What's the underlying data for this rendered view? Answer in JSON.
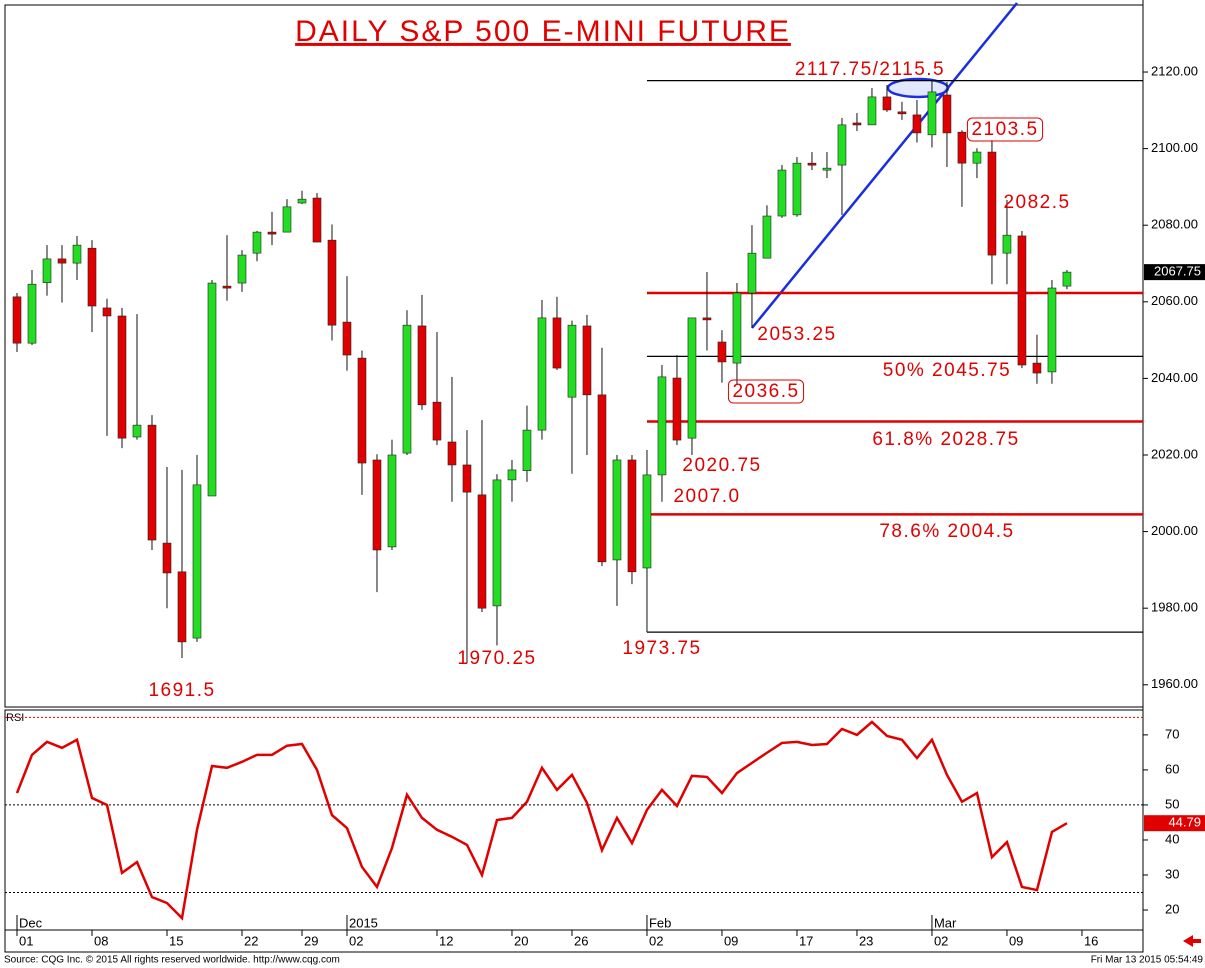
{
  "chart_data": [
    {
      "type": "candlestick",
      "title": "DAILY S&P 500 E-MINI FUTURE",
      "up_color": "#22dd22",
      "down_color": "#e00000",
      "xlim": [
        -0.8,
        75.07
      ],
      "ylim": [
        1954.2,
        2137.5
      ],
      "yticks": [
        {
          "value": 1960,
          "label": "1960.00"
        },
        {
          "value": 1980,
          "label": "1980.00"
        },
        {
          "value": 2000,
          "label": "2000.00"
        },
        {
          "value": 2020,
          "label": "2020.00"
        },
        {
          "value": 2040,
          "label": "2040.00"
        },
        {
          "value": 2060,
          "label": "2060.00"
        },
        {
          "value": 2080,
          "label": "2080.00"
        },
        {
          "value": 2100,
          "label": "2100.00"
        },
        {
          "value": 2120,
          "label": "2120.00"
        }
      ],
      "open": [
        2061.3,
        2049.2,
        2065,
        2071.2,
        2070.1,
        2074,
        2058.4,
        2056.3,
        2024.7,
        2027.8,
        1997,
        1989.5,
        1972.2,
        2009.3,
        2064.1,
        2064.9,
        2072.7,
        2078.2,
        2078.2,
        2085.8,
        2087.1,
        2076.1,
        2054.7,
        2045.3,
        2018.7,
        1996,
        2020.5,
        2053.7,
        2033.8,
        2023.4,
        2017.4,
        2009.6,
        1980.6,
        2013.5,
        2015.9,
        2026.5,
        2055.8,
        2035.1,
        2053.7,
        2035.7,
        1992.6,
        2018.7,
        1990.5,
        2014.8,
        2040.1,
        2024.4,
        2055.8,
        2049.5,
        2044,
        2062.3,
        2071.4,
        2082.4,
        2082.7,
        2096.2,
        2094.9,
        2095.7,
        2106.7,
        2106.2,
        2113.5,
        2109.6,
        2108.8,
        2103.6,
        2114,
        2104.3,
        2096.2,
        2099.1,
        2072.7,
        2077.2,
        2044,
        2041.7,
        2064.1
      ],
      "close": [
        2049.2,
        2064.6,
        2071.2,
        2070.1,
        2074.8,
        2058.9,
        2056.3,
        2024.4,
        2027.8,
        1997.8,
        1989.2,
        1971.2,
        2012.2,
        2064.9,
        2063.6,
        2072.2,
        2078.2,
        2078.0,
        2084.8,
        2086.8,
        2075.6,
        2053.9,
        2046.1,
        2017.9,
        1995.2,
        2020,
        2053.9,
        2033.1,
        2023.9,
        2017.4,
        2010.3,
        1980,
        2013.5,
        2016.1,
        2026.5,
        2055.8,
        2042.7,
        2053.9,
        2035.7,
        1992.1,
        2018.7,
        1989.5,
        2014.8,
        2040.4,
        2023.9,
        2055.8,
        2055.6,
        2044.3,
        2062.3,
        2072.7,
        2082.4,
        2094.4,
        2096.2,
        2096.0,
        2094.9,
        2106.2,
        2106.5,
        2113.5,
        2110.1,
        2109.4,
        2104.1,
        2114.8,
        2104.1,
        2096.2,
        2099.1,
        2072.2,
        2077.4,
        2043.5,
        2041.4,
        2063.6,
        2067.75
      ],
      "high": [
        2062.3,
        2068.3,
        2074.8,
        2074.8,
        2077.2,
        2076.1,
        2060.8,
        2058.4,
        2056.8,
        2030.4,
        2016.9,
        2016.1,
        2020,
        2065.7,
        2077.4,
        2073.5,
        2078.5,
        2083.5,
        2086.8,
        2089,
        2088.4,
        2080.2,
        2066.7,
        2047.3,
        2020.2,
        2024,
        2057.8,
        2061.8,
        2052.1,
        2040.4,
        2026.5,
        2029.1,
        2015,
        2018.7,
        2032.9,
        2060.5,
        2061.3,
        2055.1,
        2056.6,
        2048,
        2020,
        2020,
        2021.3,
        2043.5,
        2046.1,
        2055.8,
        2067.8,
        2052.6,
        2064.9,
        2080,
        2085.2,
        2095.7,
        2097.8,
        2099.1,
        2099.1,
        2108,
        2109.3,
        2115.8,
        2116.6,
        2112.2,
        2112.7,
        2117.9,
        2117.4,
        2104.8,
        2100.1,
        2102.2,
        2086.6,
        2078.5,
        2051.4,
        2065.7,
        2068.3
      ],
      "low": [
        2046.9,
        2048.7,
        2061.6,
        2059.8,
        2065.7,
        2052.1,
        2025,
        2021.8,
        2024,
        1995.2,
        1980,
        1967,
        1971.2,
        2009.3,
        2060.3,
        2062.6,
        2070.6,
        2074.8,
        2078.2,
        2085.5,
        2075.6,
        2049.9,
        2042,
        2009.6,
        1984.2,
        1995.2,
        2020,
        2031.8,
        2022.6,
        2007.8,
        1965.6,
        1979,
        1970.3,
        2007.8,
        2013,
        2024,
        2042.2,
        2015.1,
        2020,
        1991,
        1980.6,
        1986.3,
        1973.75,
        2007.8,
        2022.6,
        2020,
        2047.3,
        2038.9,
        2038.6,
        2053.2,
        2071.7,
        2081.9,
        2082.2,
        2094.4,
        2092.3,
        2082.7,
        2104.6,
        2106.2,
        2109.6,
        2107.5,
        2101.6,
        2100.3,
        2095.2,
        2084.8,
        2092.3,
        2064.6,
        2064.6,
        2042.7,
        2038.6,
        2038.6,
        2063.3
      ],
      "levels": [
        {
          "value": 2117.75,
          "color": "#000000",
          "from": 42
        },
        {
          "value": 2062.3,
          "color": "#e00000",
          "from": 42
        },
        {
          "value": 2045.75,
          "color": "#000000",
          "from": 42
        },
        {
          "value": 2028.75,
          "color": "#e00000",
          "from": 42
        },
        {
          "value": 2004.5,
          "color": "#e00000",
          "from": 42
        },
        {
          "value": 1973.75,
          "color": "#000000",
          "from": 42
        }
      ],
      "last_label": {
        "value": 2067.75,
        "label": "2067.75"
      },
      "annotations": [
        {
          "text": "2117.75/2115.5",
          "boxed": false
        },
        {
          "text": "2103.5",
          "boxed": true
        },
        {
          "text": "2082.5",
          "boxed": false
        },
        {
          "text": "2053.25",
          "boxed": false
        },
        {
          "text": "50% 2045.75",
          "boxed": false
        },
        {
          "text": "2036.5",
          "boxed": true
        },
        {
          "text": "61.8% 2028.75",
          "boxed": false
        },
        {
          "text": "2020.75",
          "boxed": false
        },
        {
          "text": "2007.0",
          "boxed": false
        },
        {
          "text": "78.6% 2004.5",
          "boxed": false
        },
        {
          "text": "1970.25",
          "boxed": false
        },
        {
          "text": "1973.75",
          "boxed": false
        },
        {
          "text": "1691.5",
          "boxed": false
        }
      ]
    },
    {
      "type": "line",
      "label": "RSI",
      "color": "#e00000",
      "xlim": [
        -0.8,
        75.07
      ],
      "ylim": [
        14.3,
        77.1
      ],
      "yticks": [
        20,
        30,
        40,
        50,
        60,
        70
      ],
      "levels": [
        75,
        50,
        25
      ],
      "values": [
        53.4,
        64.3,
        68,
        66.3,
        68.6,
        52,
        50,
        30.6,
        33.7,
        23.7,
        22,
        17.7,
        42.9,
        61.1,
        60.6,
        62.3,
        64.3,
        64.3,
        66.9,
        67.4,
        60,
        47.1,
        43.4,
        32.3,
        26.6,
        37.7,
        52.9,
        46.3,
        42.9,
        40.9,
        38.6,
        30,
        45.7,
        46.3,
        50.9,
        60.6,
        54.3,
        58.6,
        50.6,
        37.1,
        46.3,
        39.1,
        48.6,
        54.3,
        49.7,
        58.3,
        58,
        53.4,
        59.1,
        62,
        64.9,
        67.7,
        68,
        67.1,
        67.4,
        71.7,
        70,
        73.7,
        69.7,
        68.6,
        63.4,
        68.6,
        58.6,
        50.9,
        53.4,
        35.1,
        39.4,
        26.6,
        25.7,
        42.3,
        44.79
      ],
      "last_label": {
        "value": 44.79,
        "label": "44.79"
      },
      "xticks": [
        {
          "value": 0,
          "label": "01"
        },
        {
          "value": 5,
          "label": "08"
        },
        {
          "value": 10,
          "label": "15"
        },
        {
          "value": 15,
          "label": "22"
        },
        {
          "value": 19,
          "label": "29"
        },
        {
          "value": 22,
          "label": "02"
        },
        {
          "value": 28,
          "label": "12"
        },
        {
          "value": 33,
          "label": "20"
        },
        {
          "value": 37,
          "label": "26"
        },
        {
          "value": 42,
          "label": "02"
        },
        {
          "value": 47,
          "label": "09"
        },
        {
          "value": 52,
          "label": "17"
        },
        {
          "value": 56,
          "label": "23"
        },
        {
          "value": 61,
          "label": "02"
        },
        {
          "value": 66,
          "label": "09"
        },
        {
          "value": 71,
          "label": "16"
        }
      ],
      "period_ticks": [
        {
          "value": 0,
          "label": "Dec"
        },
        {
          "value": 22,
          "label": "2015"
        },
        {
          "value": 42,
          "label": "Feb"
        },
        {
          "value": 61,
          "label": "Mar"
        }
      ]
    }
  ],
  "footer": {
    "source": "Source: CQG Inc. © 2015 All rights reserved worldwide. http://www.cqg.com",
    "timestamp": "Fri Mar 13 2015 05:54:49"
  }
}
